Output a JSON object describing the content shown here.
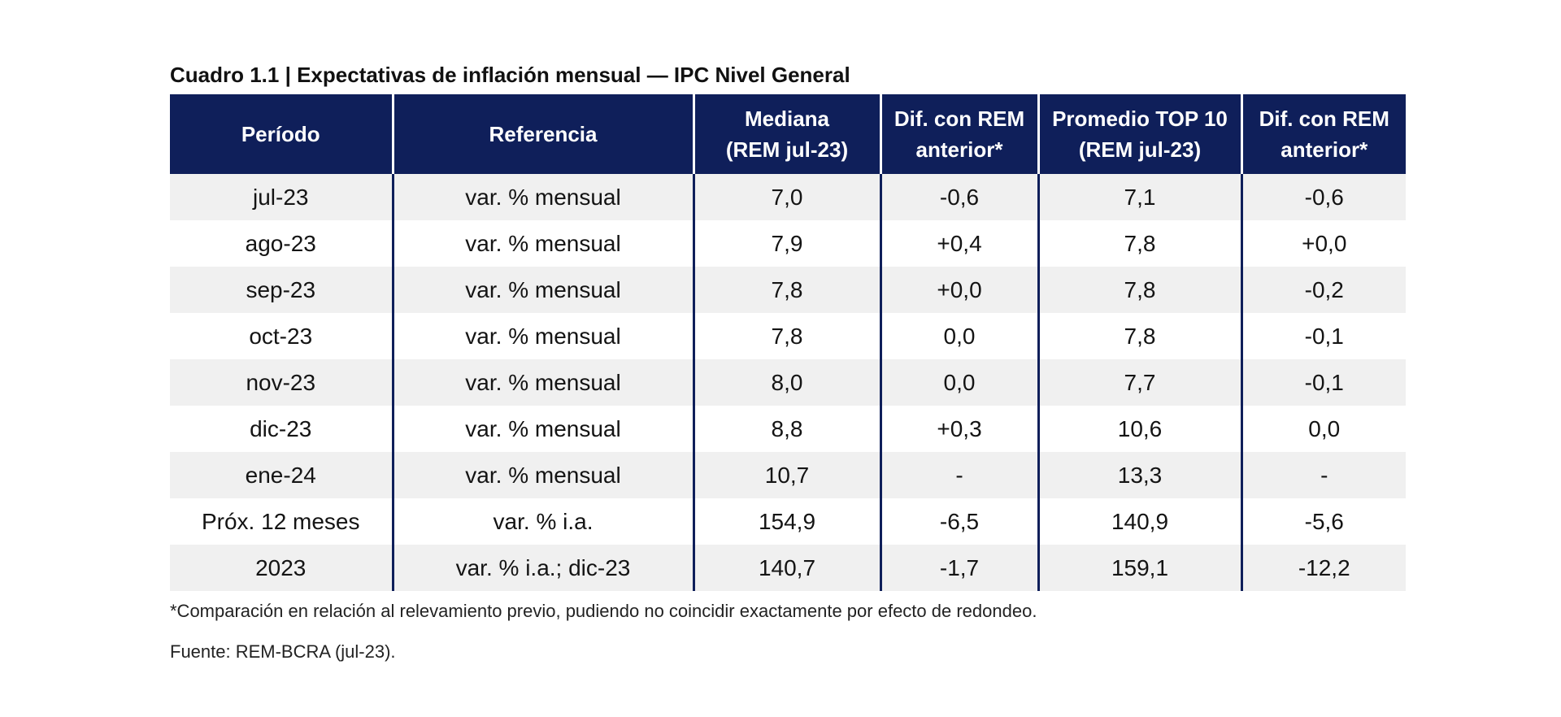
{
  "title": "Cuadro 1.1 | Expectativas de inflación mensual — IPC Nivel General",
  "headers": [
    {
      "line1": "Período",
      "line2": ""
    },
    {
      "line1": "Referencia",
      "line2": ""
    },
    {
      "line1": "Mediana",
      "line2": "(REM jul-23)"
    },
    {
      "line1": "Dif. con REM",
      "line2": "anterior*"
    },
    {
      "line1": "Promedio TOP 10",
      "line2": "(REM jul-23)"
    },
    {
      "line1": "Dif. con REM",
      "line2": "anterior*"
    }
  ],
  "rows": [
    [
      "jul-23",
      "var. % mensual",
      "7,0",
      "-0,6",
      "7,1",
      "-0,6"
    ],
    [
      "ago-23",
      "var. % mensual",
      "7,9",
      "+0,4",
      "7,8",
      "+0,0"
    ],
    [
      "sep-23",
      "var. % mensual",
      "7,8",
      "+0,0",
      "7,8",
      "-0,2"
    ],
    [
      "oct-23",
      "var. % mensual",
      "7,8",
      "0,0",
      "7,8",
      "-0,1"
    ],
    [
      "nov-23",
      "var. % mensual",
      "8,0",
      "0,0",
      "7,7",
      "-0,1"
    ],
    [
      "dic-23",
      "var. % mensual",
      "8,8",
      "+0,3",
      "10,6",
      "0,0"
    ],
    [
      "ene-24",
      "var. % mensual",
      "10,7",
      "-",
      "13,3",
      "-"
    ],
    [
      "Próx. 12 meses",
      "var. % i.a.",
      "154,9",
      "-6,5",
      "140,9",
      "-5,6"
    ],
    [
      "2023",
      "var. % i.a.; dic-23",
      "140,7",
      "-1,7",
      "159,1",
      "-12,2"
    ]
  ],
  "footnote": "*Comparación en relación al relevamiento previo, pudiendo no coincidir exactamente por efecto de redondeo.",
  "source": "Fuente: REM-BCRA (jul-23).",
  "colors": {
    "header_bg": "#0f1f5a",
    "header_text": "#ffffff",
    "stripe": "#f0f0f0",
    "divider": "#0f1f5a"
  }
}
